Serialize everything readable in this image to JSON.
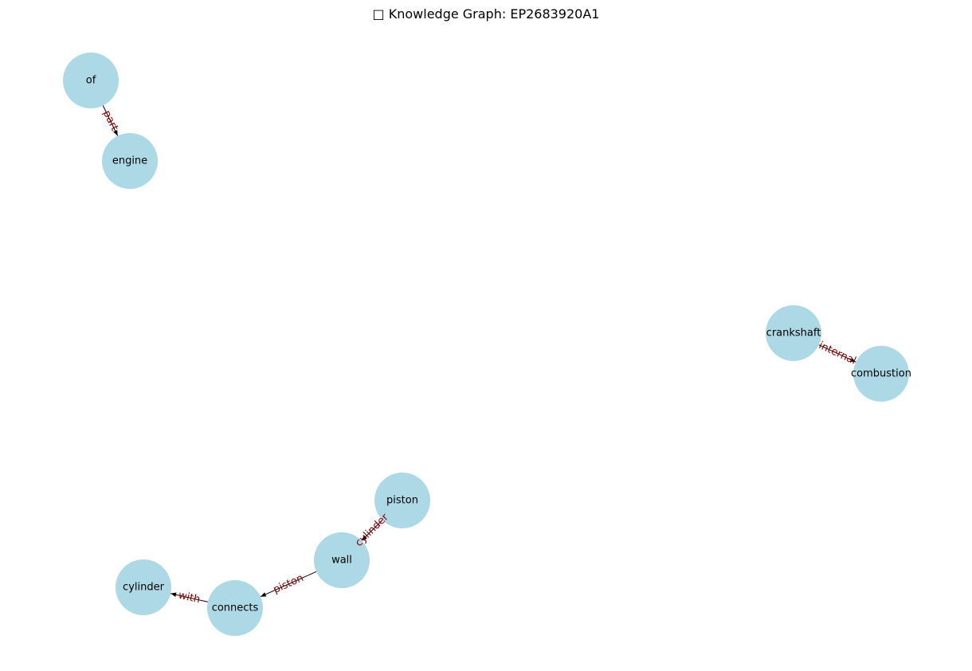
{
  "title": "□ Knowledge Graph: EP2683920A1",
  "colors": {
    "node_fill": "#add8e6",
    "edge_stroke": "#000000",
    "edge_label": "#8b0000",
    "node_text": "#000000"
  },
  "nodes": [
    {
      "id": "of",
      "label": "of"
    },
    {
      "id": "engine",
      "label": "engine"
    },
    {
      "id": "crankshaft",
      "label": "crankshaft"
    },
    {
      "id": "combustion",
      "label": "combustion"
    },
    {
      "id": "piston",
      "label": "piston"
    },
    {
      "id": "wall",
      "label": "wall"
    },
    {
      "id": "cylinder",
      "label": "cylinder"
    },
    {
      "id": "connects",
      "label": "connects"
    }
  ],
  "edges": [
    {
      "source": "of",
      "target": "engine",
      "label": "part",
      "directed": true
    },
    {
      "source": "crankshaft",
      "target": "combustion",
      "label": "internal",
      "directed": true
    },
    {
      "source": "piston",
      "target": "wall",
      "label": "cylinder",
      "directed": true
    },
    {
      "source": "wall",
      "target": "connects",
      "label": "piston",
      "directed": true
    },
    {
      "source": "connects",
      "target": "cylinder",
      "label": "with",
      "directed": true
    }
  ]
}
